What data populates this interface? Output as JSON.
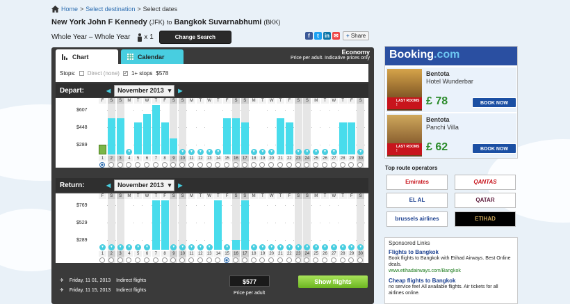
{
  "breadcrumb": {
    "home": "Home",
    "sep1": ">",
    "step1": "Select destination",
    "sep2": ">",
    "step2": "Select dates"
  },
  "route": {
    "origin": "New York John F Kennedy",
    "origin_code": "(JFK)",
    "to": "to",
    "dest": "Bangkok Suvarnabhumi",
    "dest_code": "(BKK)"
  },
  "search": {
    "period": "Whole Year – Whole Year",
    "pax": "x 1",
    "change_label": "Change Search"
  },
  "share": {
    "label": "Share"
  },
  "tabs": {
    "chart": "Chart",
    "calendar": "Calendar"
  },
  "cabin": {
    "title": "Economy",
    "sub1": "Price per adult. Indicative prices only"
  },
  "stops": {
    "label": "Stops:",
    "direct": "Direct (none)",
    "one_plus": "1+ stops",
    "one_plus_price": "$578"
  },
  "depart": {
    "label": "Depart:",
    "month": "November 2013",
    "y_labels": [
      "$607",
      "$448",
      "$289"
    ]
  },
  "return": {
    "label": "Return:",
    "month": "November 2013",
    "y_labels": [
      "$769",
      "$529",
      "$289"
    ]
  },
  "days": {
    "letters": [
      "F",
      "S",
      "S",
      "M",
      "T",
      "W",
      "T",
      "F",
      "S",
      "S",
      "M",
      "T",
      "W",
      "T",
      "F",
      "S",
      "S",
      "M",
      "T",
      "W",
      "T",
      "F",
      "S",
      "S",
      "M",
      "T",
      "W",
      "T",
      "F",
      "S"
    ],
    "numbers": [
      "1",
      "2",
      "3",
      "4",
      "5",
      "6",
      "7",
      "8",
      "9",
      "10",
      "11",
      "12",
      "13",
      "14",
      "15",
      "16",
      "17",
      "18",
      "19",
      "20",
      "21",
      "22",
      "23",
      "24",
      "25",
      "26",
      "27",
      "28",
      "29",
      "30"
    ]
  },
  "chart_data": [
    {
      "type": "bar",
      "title": "Depart:",
      "month": "November 2013",
      "categories": [
        "1",
        "2",
        "3",
        "4",
        "5",
        "6",
        "7",
        "8",
        "9",
        "10",
        "11",
        "12",
        "13",
        "14",
        "15",
        "16",
        "17",
        "18",
        "19",
        "20",
        "21",
        "22",
        "23",
        "24",
        "25",
        "26",
        "27",
        "28",
        "29",
        "30"
      ],
      "values": [
        289,
        478,
        478,
        null,
        448,
        510,
        575,
        448,
        335,
        null,
        null,
        null,
        null,
        null,
        478,
        478,
        448,
        null,
        null,
        null,
        478,
        448,
        null,
        null,
        null,
        null,
        null,
        448,
        448,
        null
      ],
      "selected_day": "1",
      "ylabels": [
        "$607",
        "$448",
        "$289"
      ],
      "ylim": [
        289,
        607
      ]
    },
    {
      "type": "bar",
      "title": "Return:",
      "month": "November 2013",
      "categories": [
        "1",
        "2",
        "3",
        "4",
        "5",
        "6",
        "7",
        "8",
        "9",
        "10",
        "11",
        "12",
        "13",
        "14",
        "15",
        "16",
        "17",
        "18",
        "19",
        "20",
        "21",
        "22",
        "23",
        "24",
        "25",
        "26",
        "27",
        "28",
        "29",
        "30"
      ],
      "values": [
        null,
        null,
        null,
        null,
        null,
        null,
        769,
        769,
        null,
        null,
        null,
        null,
        null,
        769,
        null,
        289,
        718,
        null,
        null,
        null,
        null,
        null,
        null,
        null,
        null,
        null,
        null,
        null,
        null,
        null
      ],
      "selected_day": "15",
      "ylabels": [
        "$769",
        "$529",
        "$289"
      ],
      "ylim": [
        289,
        769
      ]
    }
  ],
  "summary": {
    "out_date": "Friday, 11 01, 2013",
    "out_type": "Indirect flights",
    "ret_date": "Friday, 11 15, 2013",
    "ret_type": "Indirect flights",
    "price": "$577",
    "price_sub": "Price per adult",
    "show": "Show flights"
  },
  "ad": {
    "brand_main": "Booking",
    "brand_dot": ".com",
    "hotels": [
      {
        "name": "Bentota",
        "sub": "Hotel Wunderbar",
        "price": "£ 78",
        "last": "LAST ROOMS !",
        "book": "BOOK NOW"
      },
      {
        "name": "Bentota",
        "sub": "Panchi Villa",
        "price": "£ 62",
        "last": "LAST ROOMS !",
        "book": "BOOK NOW"
      }
    ]
  },
  "operators": {
    "title": "Top route operators",
    "list": [
      "Emirates",
      "QANTAS",
      "EL AL",
      "QATAR",
      "brussels airlines",
      "ETIHAD"
    ]
  },
  "sponsored": {
    "title": "Sponsored Links",
    "items": [
      {
        "title": "Flights to Bangkok",
        "desc": "Book flights to Bangkok with Etihad Airways. Best Online deals.",
        "url": "www.etihadairways.com/Bangkok"
      },
      {
        "title": "Cheap flights to Bangkok",
        "desc": "no service fee! All available flights. Air tickets for all airlines online.",
        "url": ""
      }
    ]
  },
  "colors": {
    "bar": "#48dcec",
    "selected": "#7ab648",
    "accent": "#48cee0",
    "panel": "#3a3a3a"
  }
}
